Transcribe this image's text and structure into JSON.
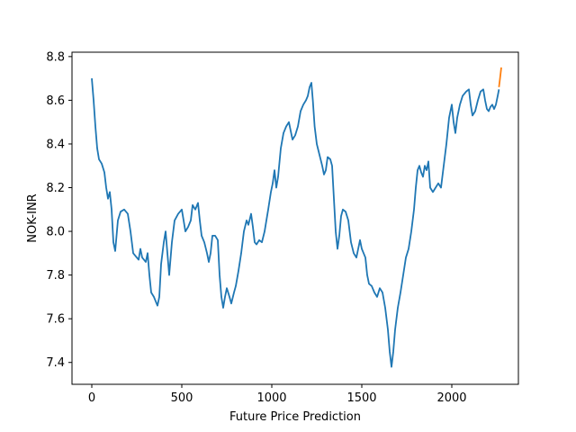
{
  "chart_data": {
    "type": "line",
    "title": "",
    "xlabel": "Future Price Prediction",
    "ylabel": "NOK-INR",
    "xlim": [
      -110,
      2370
    ],
    "ylim": [
      7.3,
      8.82
    ],
    "xticks": [
      0,
      500,
      1000,
      1500,
      2000
    ],
    "yticks": [
      7.4,
      7.6,
      7.8,
      8.0,
      8.2,
      8.4,
      8.6,
      8.8
    ],
    "xtick_labels": [
      "0",
      "500",
      "1000",
      "1500",
      "2000"
    ],
    "ytick_labels": [
      "7.4",
      "7.6",
      "7.8",
      "8.0",
      "8.2",
      "8.4",
      "8.6",
      "8.8"
    ],
    "grid": false,
    "series": [
      {
        "color": "#1f77b4",
        "points": [
          [
            0,
            8.7
          ],
          [
            10,
            8.6
          ],
          [
            20,
            8.48
          ],
          [
            30,
            8.38
          ],
          [
            40,
            8.33
          ],
          [
            55,
            8.31
          ],
          [
            70,
            8.27
          ],
          [
            80,
            8.2
          ],
          [
            90,
            8.15
          ],
          [
            100,
            8.18
          ],
          [
            110,
            8.1
          ],
          [
            120,
            7.95
          ],
          [
            130,
            7.91
          ],
          [
            145,
            8.05
          ],
          [
            160,
            8.09
          ],
          [
            180,
            8.1
          ],
          [
            200,
            8.08
          ],
          [
            215,
            8.0
          ],
          [
            230,
            7.9
          ],
          [
            250,
            7.88
          ],
          [
            260,
            7.87
          ],
          [
            270,
            7.92
          ],
          [
            280,
            7.88
          ],
          [
            300,
            7.86
          ],
          [
            310,
            7.9
          ],
          [
            320,
            7.8
          ],
          [
            330,
            7.72
          ],
          [
            345,
            7.7
          ],
          [
            355,
            7.68
          ],
          [
            365,
            7.66
          ],
          [
            375,
            7.7
          ],
          [
            385,
            7.85
          ],
          [
            400,
            7.95
          ],
          [
            410,
            8.0
          ],
          [
            420,
            7.9
          ],
          [
            430,
            7.8
          ],
          [
            445,
            7.95
          ],
          [
            460,
            8.05
          ],
          [
            480,
            8.08
          ],
          [
            500,
            8.1
          ],
          [
            510,
            8.05
          ],
          [
            520,
            8.0
          ],
          [
            535,
            8.02
          ],
          [
            550,
            8.05
          ],
          [
            560,
            8.12
          ],
          [
            575,
            8.1
          ],
          [
            590,
            8.13
          ],
          [
            600,
            8.05
          ],
          [
            610,
            7.98
          ],
          [
            625,
            7.95
          ],
          [
            640,
            7.9
          ],
          [
            650,
            7.86
          ],
          [
            660,
            7.9
          ],
          [
            670,
            7.98
          ],
          [
            685,
            7.98
          ],
          [
            700,
            7.96
          ],
          [
            710,
            7.8
          ],
          [
            720,
            7.7
          ],
          [
            730,
            7.65
          ],
          [
            740,
            7.7
          ],
          [
            750,
            7.74
          ],
          [
            765,
            7.7
          ],
          [
            775,
            7.67
          ],
          [
            790,
            7.72
          ],
          [
            800,
            7.75
          ],
          [
            815,
            7.82
          ],
          [
            830,
            7.9
          ],
          [
            845,
            8.0
          ],
          [
            860,
            8.05
          ],
          [
            870,
            8.03
          ],
          [
            885,
            8.08
          ],
          [
            895,
            8.02
          ],
          [
            905,
            7.95
          ],
          [
            915,
            7.94
          ],
          [
            930,
            7.96
          ],
          [
            945,
            7.95
          ],
          [
            960,
            8.0
          ],
          [
            980,
            8.1
          ],
          [
            995,
            8.18
          ],
          [
            1005,
            8.22
          ],
          [
            1015,
            8.28
          ],
          [
            1025,
            8.2
          ],
          [
            1035,
            8.25
          ],
          [
            1050,
            8.38
          ],
          [
            1065,
            8.45
          ],
          [
            1080,
            8.48
          ],
          [
            1095,
            8.5
          ],
          [
            1105,
            8.46
          ],
          [
            1115,
            8.42
          ],
          [
            1130,
            8.44
          ],
          [
            1145,
            8.48
          ],
          [
            1160,
            8.55
          ],
          [
            1175,
            8.58
          ],
          [
            1190,
            8.6
          ],
          [
            1200,
            8.62
          ],
          [
            1210,
            8.66
          ],
          [
            1220,
            8.68
          ],
          [
            1228,
            8.6
          ],
          [
            1238,
            8.48
          ],
          [
            1250,
            8.4
          ],
          [
            1265,
            8.35
          ],
          [
            1280,
            8.3
          ],
          [
            1290,
            8.26
          ],
          [
            1300,
            8.28
          ],
          [
            1310,
            8.34
          ],
          [
            1325,
            8.33
          ],
          [
            1335,
            8.3
          ],
          [
            1345,
            8.15
          ],
          [
            1355,
            8.0
          ],
          [
            1365,
            7.92
          ],
          [
            1375,
            7.98
          ],
          [
            1385,
            8.07
          ],
          [
            1395,
            8.1
          ],
          [
            1410,
            8.09
          ],
          [
            1425,
            8.05
          ],
          [
            1440,
            7.95
          ],
          [
            1455,
            7.9
          ],
          [
            1470,
            7.88
          ],
          [
            1480,
            7.92
          ],
          [
            1490,
            7.96
          ],
          [
            1500,
            7.92
          ],
          [
            1510,
            7.9
          ],
          [
            1520,
            7.88
          ],
          [
            1530,
            7.8
          ],
          [
            1540,
            7.76
          ],
          [
            1555,
            7.75
          ],
          [
            1570,
            7.72
          ],
          [
            1585,
            7.7
          ],
          [
            1600,
            7.74
          ],
          [
            1615,
            7.72
          ],
          [
            1630,
            7.65
          ],
          [
            1645,
            7.55
          ],
          [
            1655,
            7.45
          ],
          [
            1665,
            7.38
          ],
          [
            1675,
            7.45
          ],
          [
            1685,
            7.55
          ],
          [
            1700,
            7.65
          ],
          [
            1715,
            7.72
          ],
          [
            1730,
            7.8
          ],
          [
            1745,
            7.88
          ],
          [
            1760,
            7.92
          ],
          [
            1775,
            8.0
          ],
          [
            1790,
            8.1
          ],
          [
            1800,
            8.2
          ],
          [
            1810,
            8.28
          ],
          [
            1820,
            8.3
          ],
          [
            1830,
            8.27
          ],
          [
            1840,
            8.25
          ],
          [
            1850,
            8.3
          ],
          [
            1860,
            8.28
          ],
          [
            1870,
            8.32
          ],
          [
            1880,
            8.2
          ],
          [
            1895,
            8.18
          ],
          [
            1910,
            8.2
          ],
          [
            1925,
            8.22
          ],
          [
            1940,
            8.2
          ],
          [
            1955,
            8.3
          ],
          [
            1970,
            8.4
          ],
          [
            1985,
            8.52
          ],
          [
            2000,
            8.58
          ],
          [
            2010,
            8.5
          ],
          [
            2020,
            8.45
          ],
          [
            2030,
            8.52
          ],
          [
            2045,
            8.58
          ],
          [
            2060,
            8.62
          ],
          [
            2080,
            8.64
          ],
          [
            2095,
            8.65
          ],
          [
            2105,
            8.58
          ],
          [
            2115,
            8.53
          ],
          [
            2130,
            8.55
          ],
          [
            2145,
            8.6
          ],
          [
            2160,
            8.64
          ],
          [
            2175,
            8.65
          ],
          [
            2185,
            8.6
          ],
          [
            2195,
            8.56
          ],
          [
            2205,
            8.55
          ],
          [
            2215,
            8.57
          ],
          [
            2225,
            8.58
          ],
          [
            2235,
            8.56
          ],
          [
            2245,
            8.58
          ],
          [
            2255,
            8.62
          ],
          [
            2262,
            8.65
          ]
        ]
      },
      {
        "color": "#ff7f0e",
        "points": [
          [
            2262,
            8.66
          ],
          [
            2268,
            8.7
          ],
          [
            2275,
            8.75
          ]
        ]
      }
    ]
  }
}
